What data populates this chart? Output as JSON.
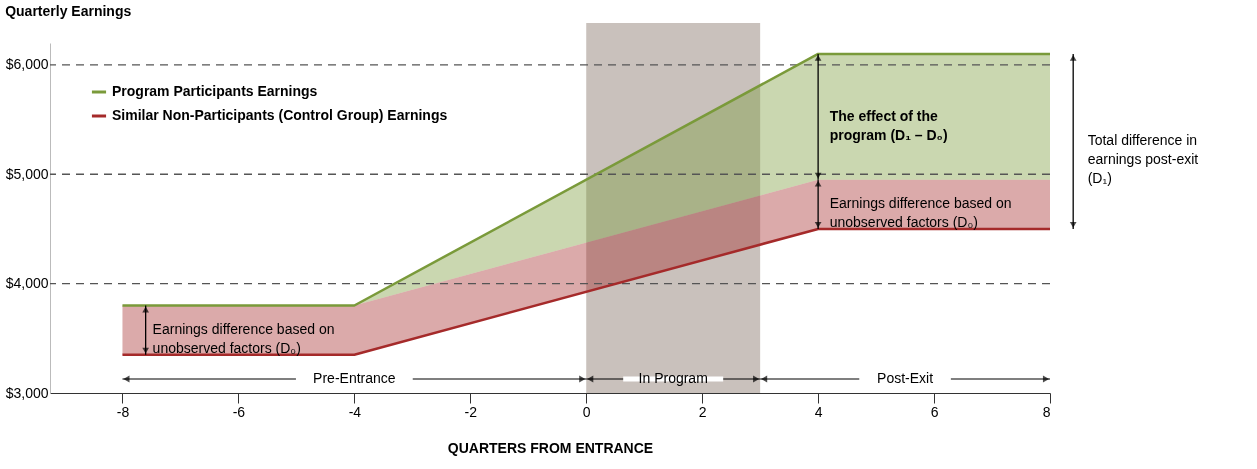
{
  "chart_data": {
    "type": "line",
    "title": "Quarterly Earnings",
    "xlabel": "QUARTERS FROM ENTRANCE",
    "x": [
      -8,
      -4,
      4,
      8
    ],
    "series": [
      {
        "name": "Program Participants Earnings",
        "color": "#7a9a3a",
        "values": [
          3800,
          3800,
          6100,
          6100
        ],
        "lower": [
          3800,
          3800,
          4950,
          4950
        ],
        "upper": [
          3800,
          3800,
          6100,
          6100
        ]
      },
      {
        "name": "Similar Non-Participants (Control Group) Earnings",
        "color": "#a52a2a",
        "values": [
          3350,
          3350,
          4500,
          4500
        ],
        "lower": [
          3350,
          3350,
          4500,
          4500
        ],
        "upper": [
          3800,
          3800,
          4950,
          4950
        ]
      }
    ],
    "xlim": [
      -9.25,
      8
    ],
    "ylim": [
      3000,
      6200
    ],
    "xticks": [
      -8,
      -6,
      -4,
      -2,
      0,
      2,
      4,
      6,
      8
    ],
    "yticks": [
      {
        "value": 3000,
        "label": "$3,000"
      },
      {
        "value": 4000,
        "label": "$4,000"
      },
      {
        "value": 5000,
        "label": "$5,000"
      },
      {
        "value": 6000,
        "label": "$6,000"
      }
    ],
    "ref_lines": [
      {
        "axis": "y",
        "value": 4000,
        "label": null,
        "line_style": "dashed",
        "color": "#555555"
      },
      {
        "axis": "y",
        "value": 5000,
        "label": null,
        "line_style": "dashed",
        "color": "#555555"
      },
      {
        "axis": "y",
        "value": 6000,
        "label": null,
        "line_style": "dashed",
        "color": "#555555"
      }
    ],
    "bands": [
      {
        "axis": "x",
        "from": 0,
        "to": 3,
        "label": "In Program",
        "color": "#c9c1bc"
      }
    ],
    "annotations": [
      {
        "text": "Earnings difference based on\nunobserved factors (D₀)",
        "x": -7.6,
        "y": 3800
      },
      "The effect of the\nprogram (D₁ – D₀)",
      "Earnings difference based on\nunobserved factors (D₀)",
      "Total difference in\nearnings post-exit\n(D₁)",
      "Pre-Entrance",
      "Post-Exit"
    ],
    "legend": "top left",
    "grid": false,
    "line_style": "solid",
    "marker": "none"
  }
}
